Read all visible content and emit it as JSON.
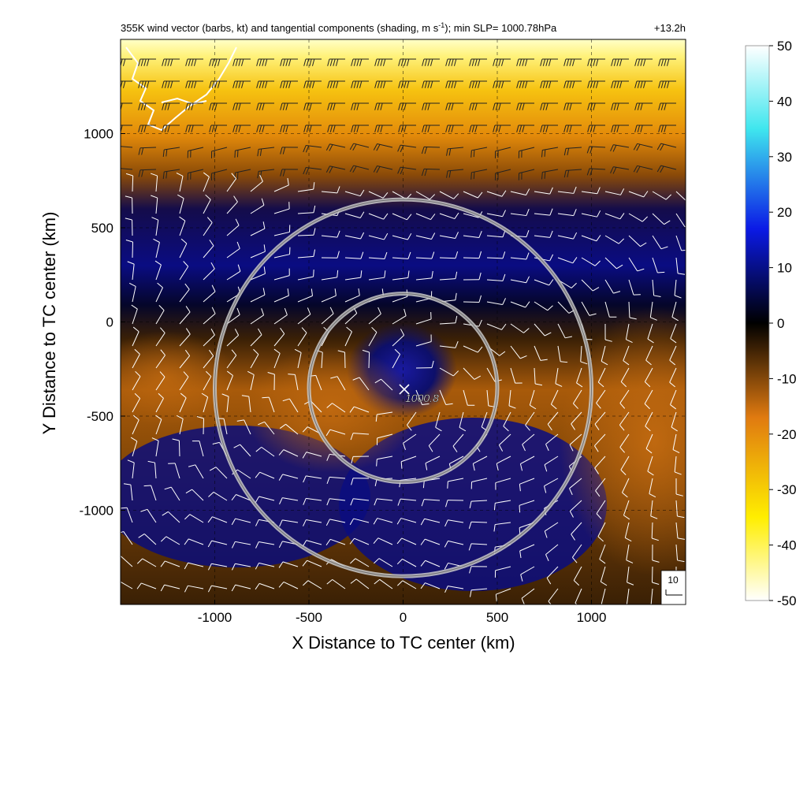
{
  "title_main": "355K wind vector (barbs, kt) and tangential components (shading, m s",
  "title_unit_sup": "-1",
  "title_tail": "); min SLP= 1000.78hPa",
  "title_time": "+13.2h",
  "center_label": "1000.8",
  "ref_barb_label": "10",
  "chart_data": {
    "type": "heatmap",
    "title": "355K wind vector (barbs, kt) and tangential components (shading, m s-1); min SLP= 1000.78hPa +13.2h",
    "xlabel": "X Distance to TC center (km)",
    "ylabel": "Y Distance to TC center (km)",
    "xlim": [
      -1500,
      1500
    ],
    "ylim": [
      -1500,
      1500
    ],
    "xticks": [
      -1000,
      -500,
      0,
      500,
      1000
    ],
    "yticks": [
      -1000,
      -500,
      0,
      500,
      1000
    ],
    "xtick_labels": [
      "-1000",
      "-500",
      "0",
      "500",
      "1000"
    ],
    "ytick_labels": [
      "-1000",
      "-500",
      "0",
      "500",
      "1000"
    ],
    "grid": true,
    "tc_center": {
      "x": 0,
      "y": -350,
      "min_slp_hPa": 1000.8
    },
    "range_rings_km": [
      500,
      1000
    ],
    "colorbar": {
      "range": [
        -50,
        50
      ],
      "ticks": [
        50,
        40,
        30,
        20,
        10,
        0,
        -10,
        -20,
        -30,
        -40,
        -50
      ],
      "tick_labels": [
        "50",
        "40",
        "30",
        "20",
        "10",
        "0",
        "-10",
        "-20",
        "-30",
        "-40",
        "-50"
      ],
      "colors": [
        "#ffffff",
        "#3fe6ee",
        "#0b1ae6",
        "#000000",
        "#e07a10",
        "#ffee00",
        "#ffffff"
      ]
    },
    "reference_barb_kt": 10
  }
}
